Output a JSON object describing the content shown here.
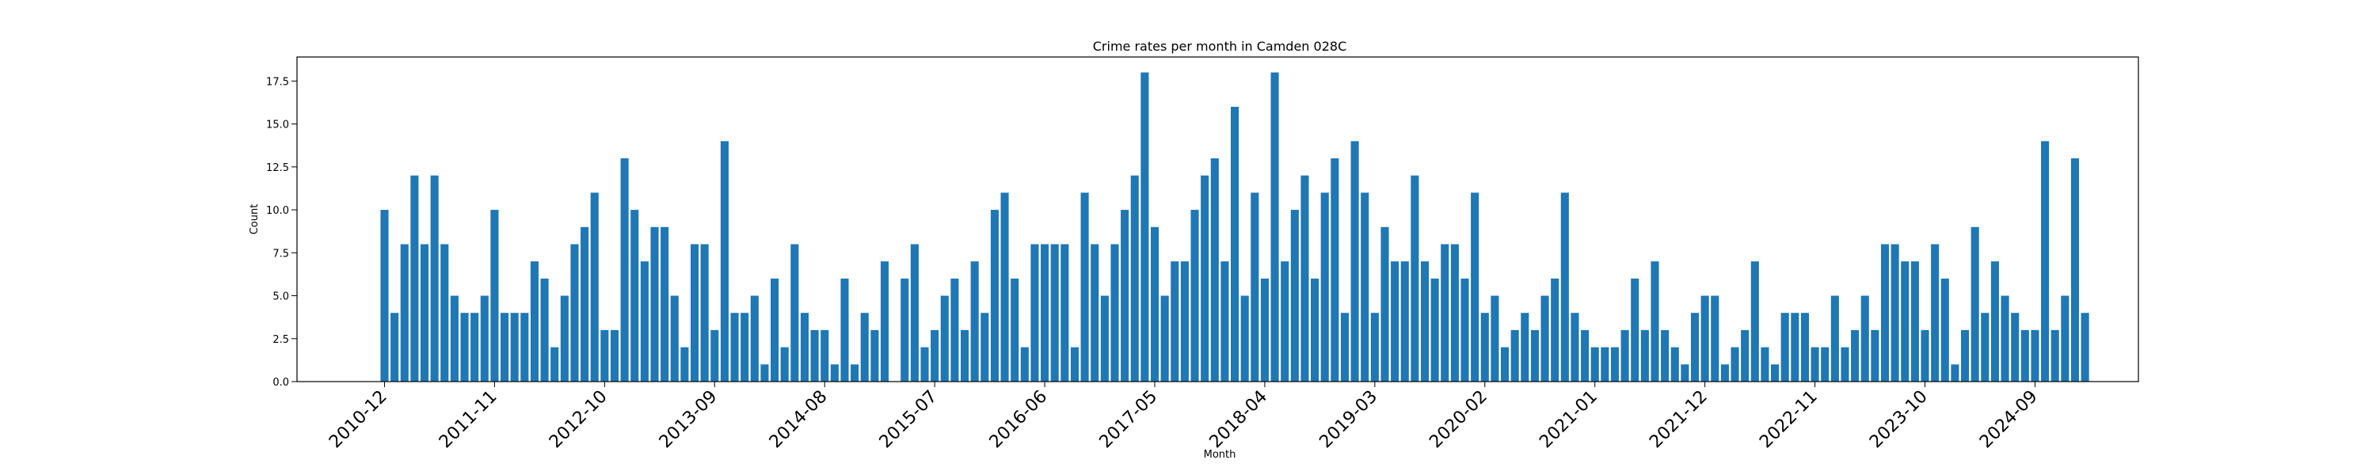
{
  "chart_data": {
    "type": "bar",
    "title": "Crime rates per month in Camden 028C",
    "xlabel": "Month",
    "ylabel": "Count",
    "ylim": [
      0,
      18.9
    ],
    "yticks": [
      "0.0",
      "2.5",
      "5.0",
      "7.5",
      "10.0",
      "12.5",
      "15.0",
      "17.5"
    ],
    "xticks": [
      "2010-12",
      "2011-11",
      "2012-10",
      "2013-09",
      "2014-08",
      "2015-07",
      "2016-06",
      "2017-05",
      "2018-04",
      "2019-03",
      "2020-02",
      "2021-01",
      "2021-12",
      "2022-11",
      "2023-10",
      "2024-09"
    ],
    "start_month": "2010-12",
    "bar_color": "#1f77b4",
    "grid": false,
    "values": [
      10,
      4,
      8,
      12,
      8,
      12,
      8,
      5,
      4,
      4,
      5,
      10,
      4,
      4,
      4,
      7,
      6,
      2,
      5,
      8,
      9,
      11,
      3,
      3,
      13,
      10,
      7,
      9,
      9,
      5,
      2,
      8,
      8,
      3,
      14,
      4,
      4,
      5,
      1,
      6,
      2,
      8,
      4,
      3,
      3,
      1,
      6,
      1,
      4,
      3,
      7,
      0,
      6,
      8,
      2,
      3,
      5,
      6,
      3,
      7,
      4,
      10,
      11,
      6,
      2,
      8,
      8,
      8,
      8,
      2,
      11,
      8,
      5,
      8,
      10,
      12,
      18,
      9,
      5,
      7,
      7,
      10,
      12,
      13,
      7,
      16,
      5,
      11,
      6,
      18,
      7,
      10,
      12,
      6,
      11,
      13,
      4,
      14,
      11,
      4,
      9,
      7,
      7,
      12,
      7,
      6,
      8,
      8,
      6,
      11,
      4,
      5,
      2,
      3,
      4,
      3,
      5,
      6,
      11,
      4,
      3,
      2,
      2,
      2,
      3,
      6,
      3,
      7,
      3,
      2,
      1,
      4,
      5,
      5,
      1,
      2,
      3,
      7,
      2,
      1,
      4,
      4,
      4,
      2,
      2,
      5,
      2,
      3,
      5,
      3,
      8,
      8,
      7,
      7,
      3,
      8,
      6,
      1,
      3,
      9,
      4,
      7,
      5,
      4,
      3,
      3,
      14,
      3,
      5,
      13,
      4
    ]
  }
}
